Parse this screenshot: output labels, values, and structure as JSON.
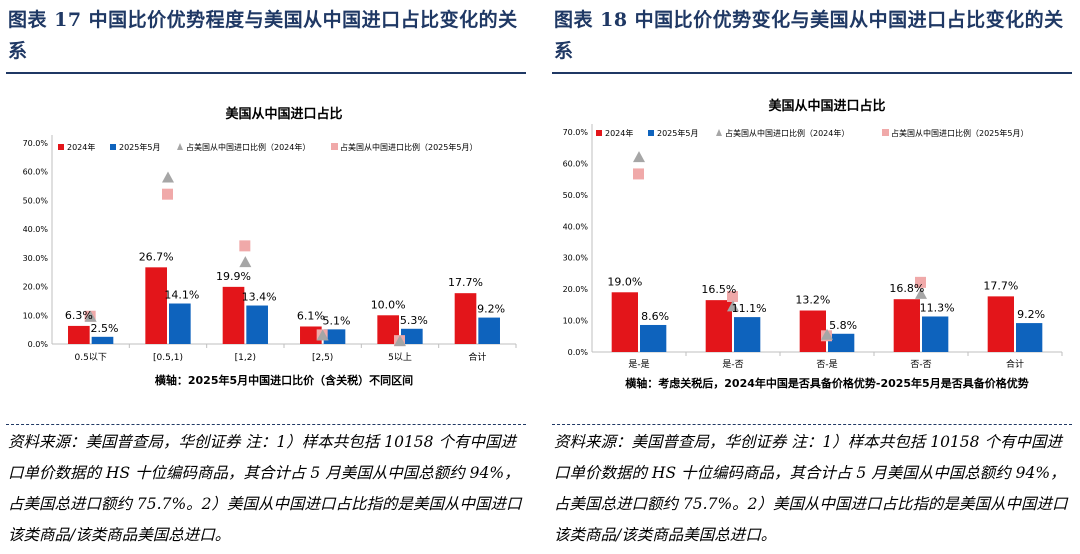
{
  "colors": {
    "title": "#1f3864",
    "red": "#e3151a",
    "blue": "#0e63bd",
    "gray_marker": "#a6a6a6",
    "pink_marker": "#f0a9a9",
    "axis": "#bfbfbf"
  },
  "panels": [
    {
      "fig_title": "图表 17 中国比价优势程度与美国从中国进口占比变化的关系",
      "source": "资料来源：美国普查局，华创证券 注：1）样本共包括 10158 个有中国进口单价数据的 HS 十位编码商品，其合计占 5 月美国从中国总额约 94%，占美国总进口额约 75.7%。2）美国从中国进口占比指的是美国从中国进口该类商品/该类商品美国总进口。"
    },
    {
      "fig_title": "图表 18 中国比价优势变化与美国从中国进口占比变化的关系",
      "source": "资料来源：美国普查局，华创证券 注：1）样本共包括 10158 个有中国进口单价数据的 HS 十位编码商品，其合计占 5 月美国从中国总额约 94%，占美国总进口额约 75.7%。2）美国从中国进口占比指的是美国从中国进口该类商品/该类商品美国总进口。"
    }
  ],
  "chart_data": [
    {
      "type": "bar",
      "title": "美国从中国进口占比",
      "xlabel": "横轴：2025年5月中国进口比价（含关税）不同区间",
      "ylabel": "",
      "ylim": [
        0,
        70
      ],
      "yticks": [
        "0.0%",
        "10.0%",
        "20.0%",
        "30.0%",
        "40.0%",
        "50.0%",
        "60.0%",
        "70.0%"
      ],
      "categories": [
        "0.5以下",
        "[0.5,1)",
        "[1,2)",
        "[2,5)",
        "5以上",
        "合计"
      ],
      "legend": "top",
      "series": [
        {
          "name": "2024年",
          "kind": "bar",
          "values": [
            6.3,
            26.7,
            19.9,
            6.1,
            10.0,
            17.7
          ],
          "labels": [
            "6.3%",
            "26.7%",
            "19.9%",
            "6.1%",
            "10.0%",
            "17.7%"
          ]
        },
        {
          "name": "2025年5月",
          "kind": "bar",
          "values": [
            2.5,
            14.1,
            13.4,
            5.1,
            5.3,
            9.2
          ],
          "labels": [
            "2.5%",
            "14.1%",
            "13.4%",
            "5.1%",
            "5.3%",
            "9.2%"
          ]
        },
        {
          "name": "占美国从中国进口比例（2024年）",
          "kind": "triangle",
          "values": [
            9.5,
            58.0,
            28.5,
            3.0,
            1.0,
            null
          ]
        },
        {
          "name": "占美国从中国进口比例（2025年5月）",
          "kind": "square",
          "values": [
            9.5,
            52.0,
            34.0,
            3.0,
            1.0,
            null
          ]
        }
      ]
    },
    {
      "type": "bar",
      "title": "美国从中国进口占比",
      "xlabel": "横轴：考虑关税后，2024年中国是否具备价格优势-2025年5月是否具备价格优势",
      "ylabel": "",
      "ylim": [
        0,
        70
      ],
      "yticks": [
        "0.0%",
        "10.0%",
        "20.0%",
        "30.0%",
        "40.0%",
        "50.0%",
        "60.0%",
        "70.0%"
      ],
      "categories": [
        "是-是",
        "是-否",
        "否-是",
        "否-否",
        "合计"
      ],
      "legend": "top",
      "series": [
        {
          "name": "2024年",
          "kind": "bar",
          "values": [
            19.0,
            16.5,
            13.2,
            16.8,
            17.7
          ],
          "labels": [
            "19.0%",
            "16.5%",
            "13.2%",
            "16.8%",
            "17.7%"
          ]
        },
        {
          "name": "2025年5月",
          "kind": "bar",
          "values": [
            8.6,
            11.1,
            5.8,
            11.3,
            9.2
          ],
          "labels": [
            "8.6%",
            "11.1%",
            "5.8%",
            "11.3%",
            "9.2%"
          ]
        },
        {
          "name": "占美国从中国进口比例（2024年）",
          "kind": "triangle",
          "values": [
            62.0,
            14.5,
            5.5,
            18.5,
            null
          ]
        },
        {
          "name": "占美国从中国进口比例（2025年5月）",
          "kind": "square",
          "values": [
            56.5,
            17.5,
            5.0,
            22.0,
            null
          ]
        }
      ]
    }
  ]
}
